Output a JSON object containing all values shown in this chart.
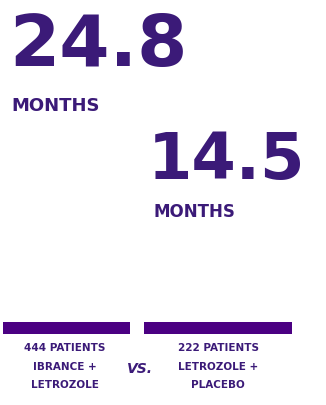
{
  "big_number_left": "24.8",
  "big_number_right": "14.5",
  "months_label": "MONTHS",
  "bar_color": "#4B0082",
  "purple_color": "#3b1a78",
  "left_patients": "444 PATIENTS",
  "left_treatment_line1": "IBRANCE +",
  "left_treatment_line2": "LETROZOLE",
  "right_patients": "222 PATIENTS",
  "right_treatment_line1": "LETROZOLE +",
  "right_treatment_line2": "PLACEBO",
  "vs_text": "VS.",
  "background_color": "#ffffff"
}
